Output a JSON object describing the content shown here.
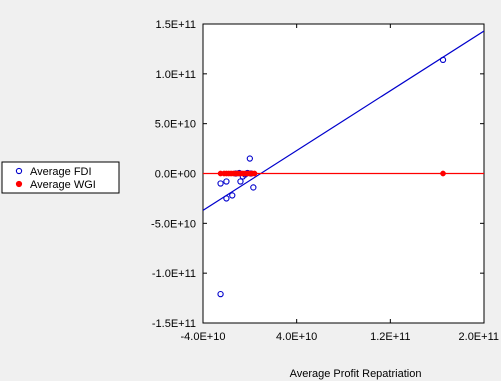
{
  "chart_data": {
    "type": "scatter",
    "xlabel": "Average Profit Repatriation",
    "ylabel": "",
    "xlim": [
      -40000000000,
      200000000000
    ],
    "ylim": [
      -150000000000,
      150000000000
    ],
    "x_ticks": [
      -40000000000,
      40000000000,
      120000000000,
      200000000000
    ],
    "x_tick_labels": [
      "-4.0E+10",
      "4.0E+10",
      "1.2E+11",
      "2.0E+11"
    ],
    "y_ticks": [
      150000000000,
      100000000000,
      50000000000,
      0,
      -50000000000,
      -100000000000,
      -150000000000
    ],
    "y_tick_labels": [
      "1.5E+11",
      "1.0E+11",
      "5.0E+10",
      "0.0E+00",
      "-5.0E+10",
      "-1.0E+11",
      "-1.5E+11"
    ],
    "grid": false,
    "legend_position": "left",
    "series": [
      {
        "name": "Average FDI",
        "marker": "open-circle",
        "color": "#0000cc",
        "points": [
          [
            -25000000000,
            -10000000000
          ],
          [
            -20000000000,
            -8000000000
          ],
          [
            -20000000000,
            -25000000000
          ],
          [
            -15000000000,
            -22000000000
          ],
          [
            -12000000000,
            0
          ],
          [
            -9000000000,
            500000000
          ],
          [
            -8000000000,
            -8000000000
          ],
          [
            -6000000000,
            -3000000000
          ],
          [
            -4000000000,
            -1000000000
          ],
          [
            -2000000000,
            500000000
          ],
          [
            0,
            15000000000
          ],
          [
            1000000000,
            0
          ],
          [
            3000000000,
            -14000000000
          ],
          [
            -25000000000,
            -121000000000
          ],
          [
            165000000000,
            114000000000
          ]
        ],
        "fit_line": {
          "slope": 0.75,
          "intercept": -7000000000
        }
      },
      {
        "name": "Average WGI",
        "marker": "filled-circle",
        "color": "#ff0000",
        "points": [
          [
            -25000000000,
            0
          ],
          [
            -22000000000,
            0
          ],
          [
            -20000000000,
            0
          ],
          [
            -18000000000,
            0
          ],
          [
            -16000000000,
            0
          ],
          [
            -14000000000,
            0
          ],
          [
            -12000000000,
            0
          ],
          [
            -10000000000,
            0
          ],
          [
            -8000000000,
            0
          ],
          [
            -6000000000,
            0
          ],
          [
            -4000000000,
            0
          ],
          [
            -2000000000,
            0
          ],
          [
            0,
            0
          ],
          [
            2000000000,
            0
          ],
          [
            4000000000,
            0
          ],
          [
            165000000000,
            0
          ]
        ],
        "fit_line": {
          "slope": 0,
          "intercept": 0
        }
      }
    ]
  }
}
